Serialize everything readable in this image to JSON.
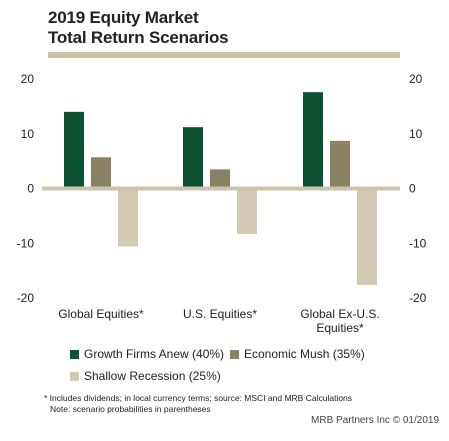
{
  "title_line1": "2019 Equity Market",
  "title_line2": "Total Return Scenarios",
  "chart_data": {
    "type": "bar",
    "categories": [
      "Global Equities*",
      "U.S. Equities*",
      "Global Ex-U.S. Equities*"
    ],
    "category_lines": [
      [
        "Global Equities*"
      ],
      [
        "U.S. Equities*"
      ],
      [
        "Global Ex-U.S.",
        "Equities*"
      ]
    ],
    "series": [
      {
        "name": "Growth Firms Anew (40%)",
        "color": "#0c5132",
        "values": [
          14.0,
          11.2,
          17.6
        ]
      },
      {
        "name": "Economic Mush (35%)",
        "color": "#8b8264",
        "values": [
          5.7,
          3.5,
          8.7
        ]
      },
      {
        "name": "Shallow Recession (25%)",
        "color": "#d2cab5",
        "values": [
          -10.6,
          -8.3,
          -17.6
        ]
      }
    ],
    "yticks": [
      20,
      10,
      0,
      -10,
      -20
    ],
    "ylim": [
      -20,
      20
    ],
    "title": "2019 Equity Market Total Return Scenarios",
    "xlabel": "",
    "ylabel": "",
    "legend": "bottom"
  },
  "footnote_line1": "* Includes dividends; in local currency terms; source: MSCI and MRB Calculations",
  "footnote_line2": "Note: scenario probabilities in parentheses",
  "credit": "MRB Partners Inc © 01/2019"
}
